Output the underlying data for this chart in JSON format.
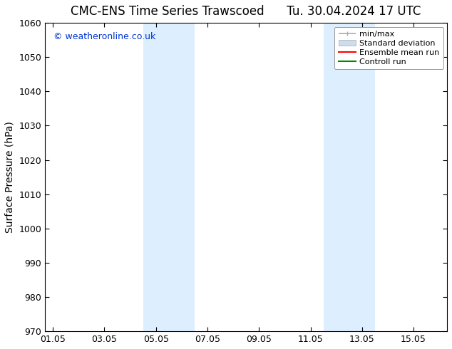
{
  "title": "CMC-ENS Time Series Trawscoed      Tu. 30.04.2024 17 UTC",
  "ylabel": "Surface Pressure (hPa)",
  "ylim": [
    970,
    1060
  ],
  "yticks": [
    970,
    980,
    990,
    1000,
    1010,
    1020,
    1030,
    1040,
    1050,
    1060
  ],
  "xtick_labels": [
    "01.05",
    "03.05",
    "05.05",
    "07.05",
    "09.05",
    "11.05",
    "13.05",
    "15.05"
  ],
  "xtick_positions": [
    0,
    2,
    4,
    6,
    8,
    10,
    12,
    14
  ],
  "xmin": -0.3,
  "xmax": 15.3,
  "shaded_bands": [
    {
      "x_start": 3.5,
      "x_end": 5.5
    },
    {
      "x_start": 10.5,
      "x_end": 12.5
    }
  ],
  "shade_color": "#ddeeff",
  "background_color": "#ffffff",
  "watermark_text": "© weatheronline.co.uk",
  "watermark_color": "#0033cc",
  "legend_entries": [
    {
      "label": "min/max",
      "color": "#aaaaaa",
      "lw": 1.2,
      "style": "minmax"
    },
    {
      "label": "Standard deviation",
      "color": "#ccddf0",
      "lw": 8,
      "style": "band"
    },
    {
      "label": "Ensemble mean run",
      "color": "#ff0000",
      "lw": 1.5,
      "style": "line"
    },
    {
      "label": "Controll run",
      "color": "#008800",
      "lw": 1.5,
      "style": "line"
    }
  ],
  "title_fontsize": 12,
  "tick_fontsize": 9,
  "ylabel_fontsize": 10,
  "watermark_fontsize": 9,
  "legend_fontsize": 8
}
